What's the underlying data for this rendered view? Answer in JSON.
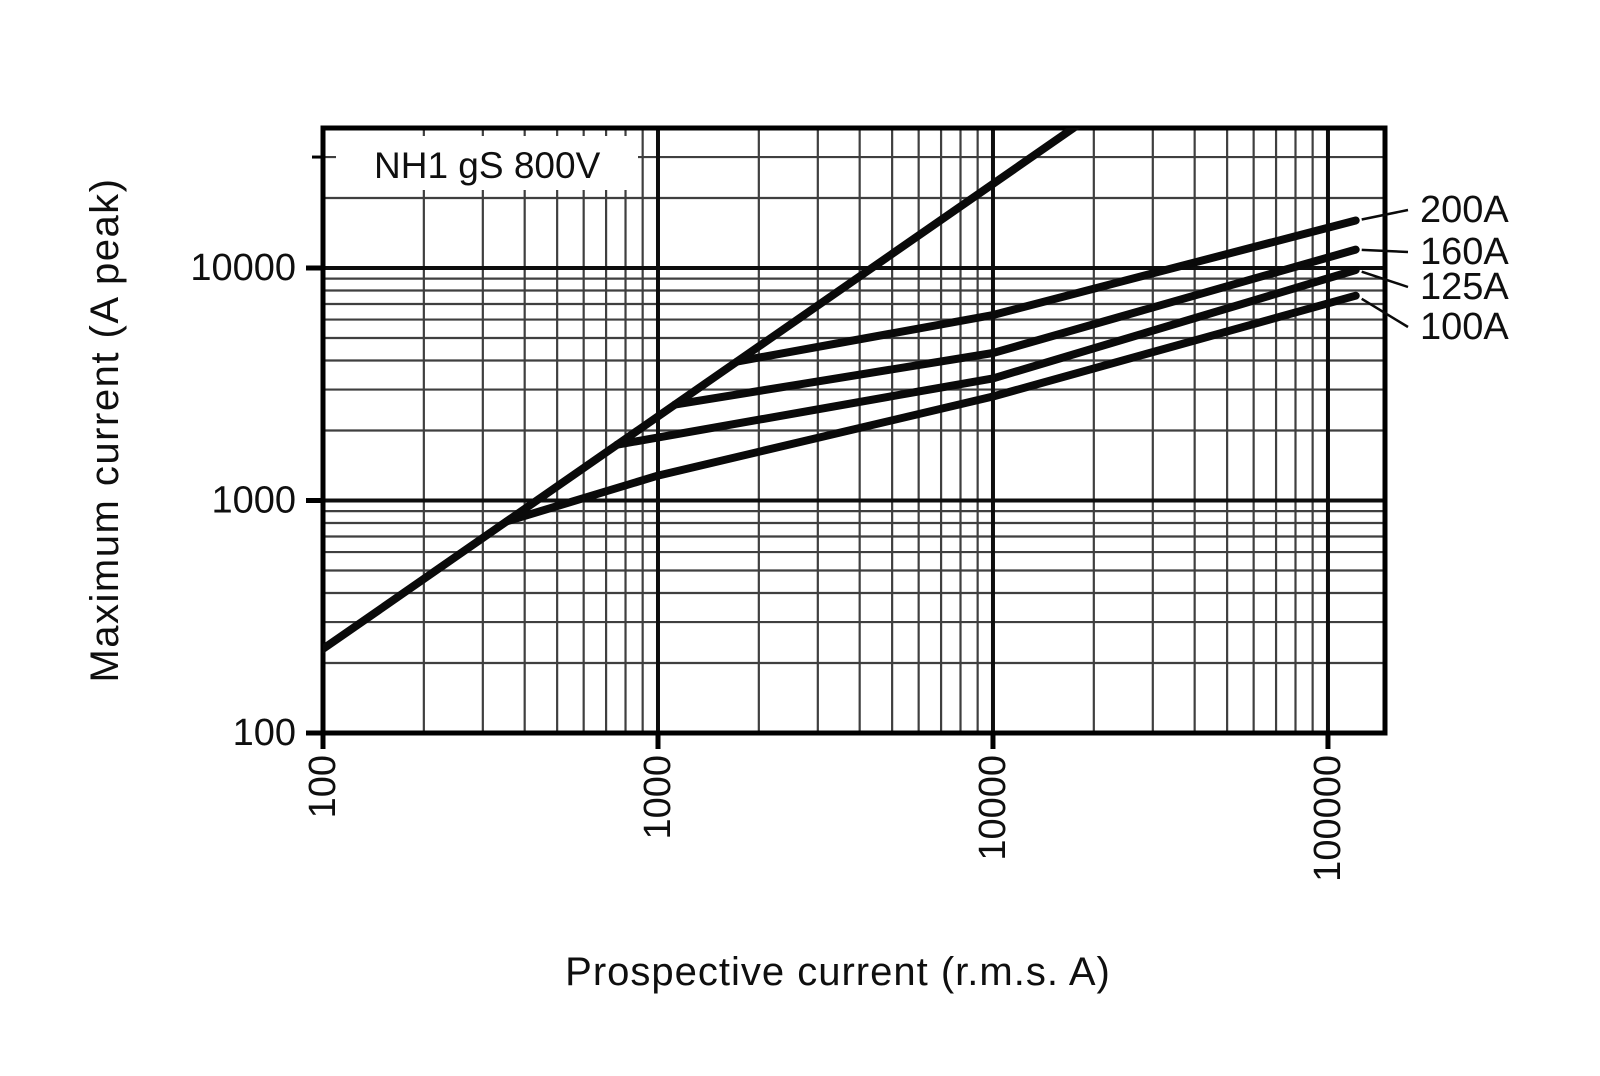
{
  "figure": {
    "title_box_label": "NH1 gS 800V"
  },
  "chart_data": {
    "type": "line",
    "title": "NH1 gS 800V",
    "xlabel": "Prospective current (r.m.s. A)",
    "ylabel": "Maximum current (A peak)",
    "x_scale": "log",
    "y_scale": "log",
    "xlim": [
      100,
      148000
    ],
    "ylim": [
      100,
      40000
    ],
    "grid": "log-minor-on",
    "legend_position": "right-outside",
    "x_ticks": [
      {
        "value": 100,
        "label": "100"
      },
      {
        "value": 1000,
        "label": "1000"
      },
      {
        "value": 10000,
        "label": "10000"
      },
      {
        "value": 100000,
        "label": "100000"
      }
    ],
    "y_ticks": [
      {
        "value": 100,
        "label": "100"
      },
      {
        "value": 1000,
        "label": "1000"
      },
      {
        "value": 10000,
        "label": "10000"
      }
    ],
    "extra_y_minor_tick": 30000,
    "series": [
      {
        "name": "peak-asymptote",
        "label": null,
        "role": "asymptote",
        "points": [
          [
            100,
            230
          ],
          [
            20000,
            46000
          ]
        ]
      },
      {
        "name": "fuse-200A",
        "label": "200A",
        "points": [
          [
            1721,
            3958
          ],
          [
            10000,
            6280
          ],
          [
            121000,
            16000
          ]
        ]
      },
      {
        "name": "fuse-160A",
        "label": "160A",
        "points": [
          [
            1124,
            2585
          ],
          [
            10000,
            4310
          ],
          [
            121000,
            12000
          ]
        ]
      },
      {
        "name": "fuse-125A",
        "label": "125A",
        "points": [
          [
            755,
            1737
          ],
          [
            10000,
            3350
          ],
          [
            121000,
            9800
          ]
        ]
      },
      {
        "name": "fuse-100A",
        "label": "100A",
        "points": [
          [
            354,
            814
          ],
          [
            1000,
            1280
          ],
          [
            10000,
            2800
          ],
          [
            121000,
            7600
          ]
        ]
      }
    ],
    "colors": {
      "background": "#ffffff",
      "curve": "#0a0a0a",
      "major_grid": "#0d0d0d",
      "minor_grid": "#3f3f3f",
      "border": "#000000",
      "text": "#0f0f0f"
    }
  }
}
